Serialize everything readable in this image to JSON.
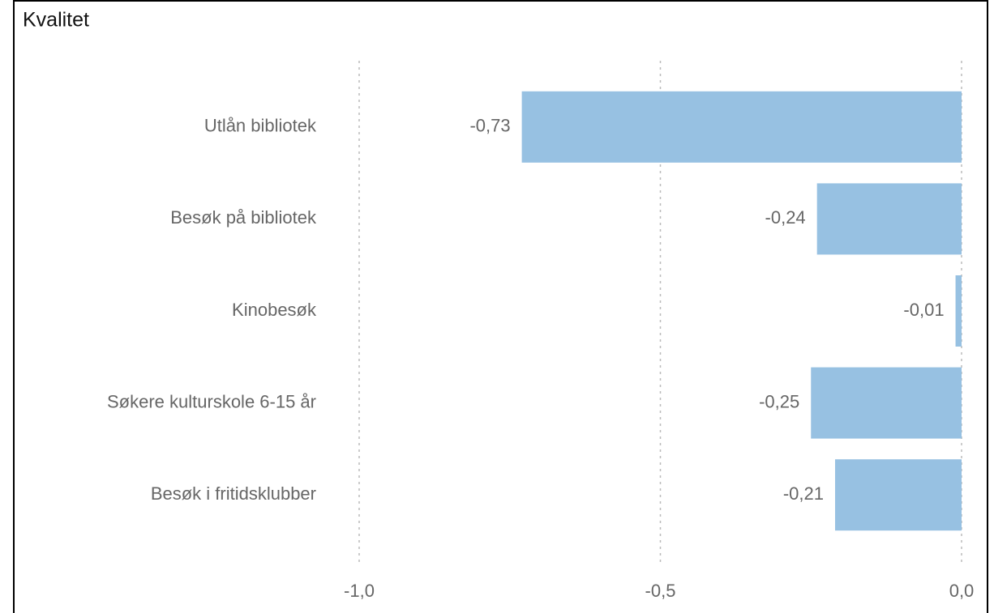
{
  "chart_data": {
    "type": "barh",
    "title": "Kvalitet",
    "categories": [
      "Utlån bibliotek",
      "Besøk på bibliotek",
      "Kinobesøk",
      "Søkere kulturskole 6-15 år",
      "Besøk i fritidsklubber"
    ],
    "values": [
      -0.73,
      -0.24,
      -0.01,
      -0.25,
      -0.21
    ],
    "value_labels": [
      "-0,73",
      "-0,24",
      "-0,01",
      "-0,25",
      "-0,21"
    ],
    "color": "#97c1e2",
    "xlim": [
      -1,
      0
    ],
    "xticks": [
      {
        "value": -1,
        "label": "-1,0"
      },
      {
        "value": -0.5,
        "label": "-0,5"
      },
      {
        "value": 0,
        "label": "0,0"
      }
    ],
    "grid": true
  }
}
